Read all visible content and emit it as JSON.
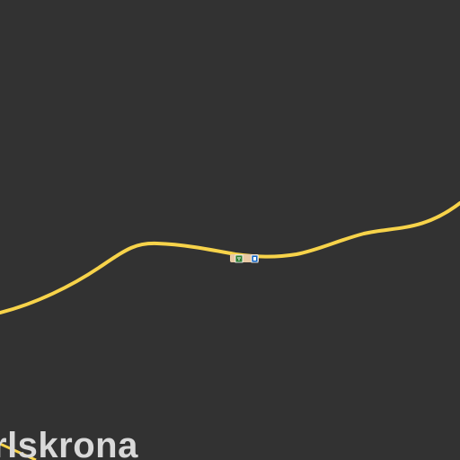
{
  "map": {
    "background_color": "#323232",
    "road_color": "#f7d34a",
    "place_label": "rlskrona",
    "icons": [
      {
        "name": "rest-area-icon",
        "color": "#2e7d32"
      },
      {
        "name": "bus-stop-icon",
        "color": "#1565c0"
      }
    ]
  }
}
